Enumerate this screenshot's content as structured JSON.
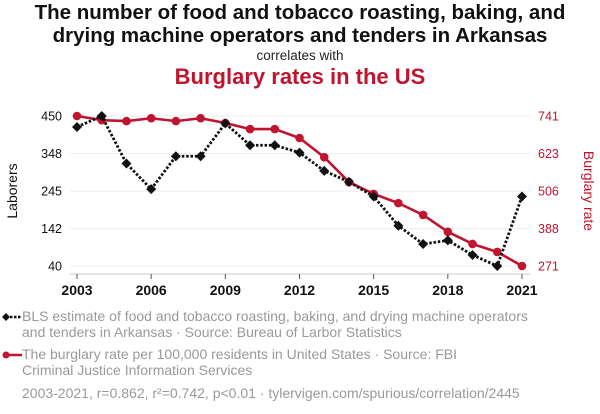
{
  "header": {
    "title_line1": "The number of food and tobacco roasting, baking, and",
    "title_line2": "drying machine operators and tenders in Arkansas",
    "correlates": "correlates with",
    "subtitle": "Burglary rates in the US"
  },
  "colors": {
    "series1": "#111111",
    "series2": "#c0142f",
    "grid": "#eeeeee",
    "legend_text": "#999999"
  },
  "chart_data": {
    "type": "line",
    "x": [
      2003,
      2004,
      2005,
      2006,
      2007,
      2008,
      2009,
      2010,
      2011,
      2012,
      2013,
      2014,
      2015,
      2016,
      2017,
      2018,
      2019,
      2020,
      2021
    ],
    "series": [
      {
        "name": "BLS estimate of food and tobacco roasting, baking, and drying machine operators and tenders in Arkansas",
        "axis": "left",
        "style": "dotted-diamond",
        "values": [
          420,
          450,
          320,
          250,
          340,
          340,
          430,
          370,
          370,
          350,
          300,
          270,
          230,
          150,
          100,
          110,
          70,
          40,
          230
        ]
      },
      {
        "name": "The burglary rate per 100,000 residents in United States",
        "axis": "right",
        "style": "solid-circle",
        "values": [
          741,
          728,
          725,
          734,
          725,
          734,
          719,
          700,
          700,
          672,
          612,
          534,
          497,
          468,
          431,
          378,
          340,
          315,
          271
        ]
      }
    ],
    "x_ticks": [
      "2003",
      "2006",
      "2009",
      "2012",
      "2015",
      "2018",
      "2021"
    ],
    "y_left": {
      "label": "Laborers",
      "ticks": [
        "450",
        "348",
        "245",
        "142",
        "40"
      ],
      "range": [
        40,
        450
      ]
    },
    "y_right": {
      "label": "Burglary rate",
      "ticks": [
        "741",
        "623",
        "506",
        "388",
        "271"
      ],
      "range": [
        271,
        741
      ]
    },
    "grid": true,
    "legend_placement": "bottom"
  },
  "legend": {
    "item1_line1": "BLS estimate of food and tobacco roasting, baking, and drying machine operators",
    "item1_line2": "and tenders in Arkansas · Source: Bureau of Larbor Statistics",
    "item2_line1": "The burglary rate per 100,000 residents in United States · Source: FBI",
    "item2_line2": "Criminal Justice Information Services"
  },
  "footer": "2003-2021, r=0.862, r²=0.742, p<0.01 · tylervigen.com/spurious/correlation/2445"
}
